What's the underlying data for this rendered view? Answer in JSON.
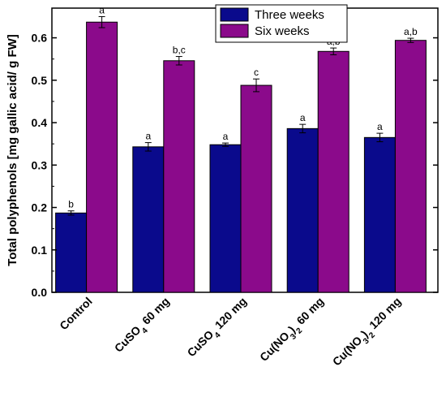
{
  "chart_data": {
    "type": "bar",
    "ylabel": "Total polyphenols [mg gallic acid/ g FW]",
    "xlabel": "",
    "ylim": [
      0.0,
      0.67
    ],
    "yticks": [
      "0.0",
      "0.1",
      "0.2",
      "0.3",
      "0.4",
      "0.5",
      "0.6"
    ],
    "categories": [
      {
        "parts": [
          [
            "Control",
            ""
          ]
        ]
      },
      {
        "parts": [
          [
            "CuSO",
            ""
          ],
          [
            "4",
            "sub"
          ],
          [
            " 60 mg",
            ""
          ]
        ]
      },
      {
        "parts": [
          [
            "CuSO",
            ""
          ],
          [
            "4",
            "sub"
          ],
          [
            " 120 mg",
            ""
          ]
        ]
      },
      {
        "parts": [
          [
            "Cu(NO",
            ""
          ],
          [
            "3",
            "sub"
          ],
          [
            ")",
            ""
          ],
          [
            "2",
            "sub"
          ],
          [
            " 60 mg",
            ""
          ]
        ]
      },
      {
        "parts": [
          [
            "Cu(NO",
            ""
          ],
          [
            "3",
            "sub"
          ],
          [
            ")",
            ""
          ],
          [
            "2",
            "sub"
          ],
          [
            " 120 mg",
            ""
          ]
        ]
      }
    ],
    "category_text": [
      "Control",
      "CuSO4 60 mg",
      "CuSO4 120 mg",
      "Cu(NO3)2 60 mg",
      "Cu(NO3)2 120 mg"
    ],
    "series": [
      {
        "name": "Three weeks",
        "color": "#0a0a8c",
        "values": [
          0.187,
          0.343,
          0.348,
          0.386,
          0.365
        ],
        "errors": [
          0.005,
          0.01,
          0.004,
          0.01,
          0.01
        ],
        "letters": [
          "b",
          "a",
          "a",
          "a",
          "a"
        ]
      },
      {
        "name": "Six weeks",
        "color": "#8b0a8b",
        "values": [
          0.637,
          0.546,
          0.488,
          0.568,
          0.594
        ],
        "errors": [
          0.013,
          0.01,
          0.015,
          0.008,
          0.005
        ],
        "letters": [
          "a",
          "b,c",
          "c",
          "a,b",
          "a,b"
        ]
      }
    ],
    "legend": "top-right",
    "grid": false
  }
}
